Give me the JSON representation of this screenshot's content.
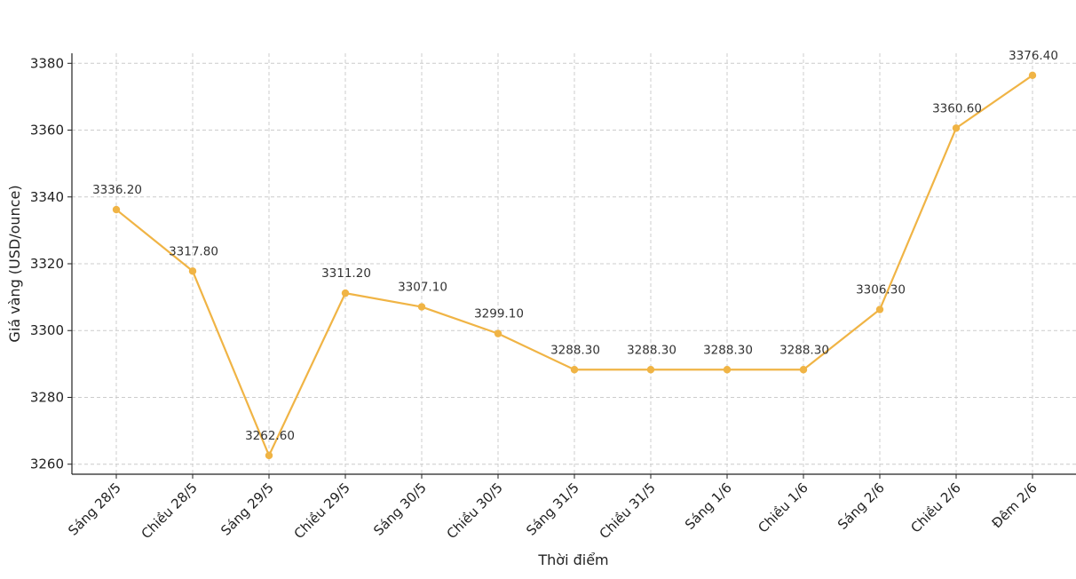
{
  "chart_data": {
    "type": "line",
    "title": "",
    "xlabel": "Thời điểm",
    "ylabel": "Giá vàng (USD/ounce)",
    "categories": [
      "Sáng 28/5",
      "Chiều 28/5",
      "Sáng 29/5",
      "Chiều 29/5",
      "Sáng 30/5",
      "Chiều 30/5",
      "Sáng 31/5",
      "Chiều 31/5",
      "Sáng 1/6",
      "Chiều 1/6",
      "Sáng 2/6",
      "Chiều 2/6",
      "Đêm 2/6"
    ],
    "series": [
      {
        "values": [
          3336.2,
          3317.8,
          3262.6,
          3311.2,
          3307.1,
          3299.1,
          3288.3,
          3288.3,
          3288.3,
          3288.3,
          3306.3,
          3360.6,
          3376.4
        ],
        "labels": [
          "3336.20",
          "3317.80",
          "3262.60",
          "3311.20",
          "3307.10",
          "3299.10",
          "3288.30",
          "3288.30",
          "3288.30",
          "3288.30",
          "3306.30",
          "3360.60",
          "3376.40"
        ],
        "color": "#f0b445"
      }
    ],
    "yticks": [
      3260,
      3280,
      3300,
      3320,
      3340,
      3360,
      3380
    ],
    "ylim": [
      3257,
      3383
    ],
    "grid": true,
    "legend": "none"
  }
}
